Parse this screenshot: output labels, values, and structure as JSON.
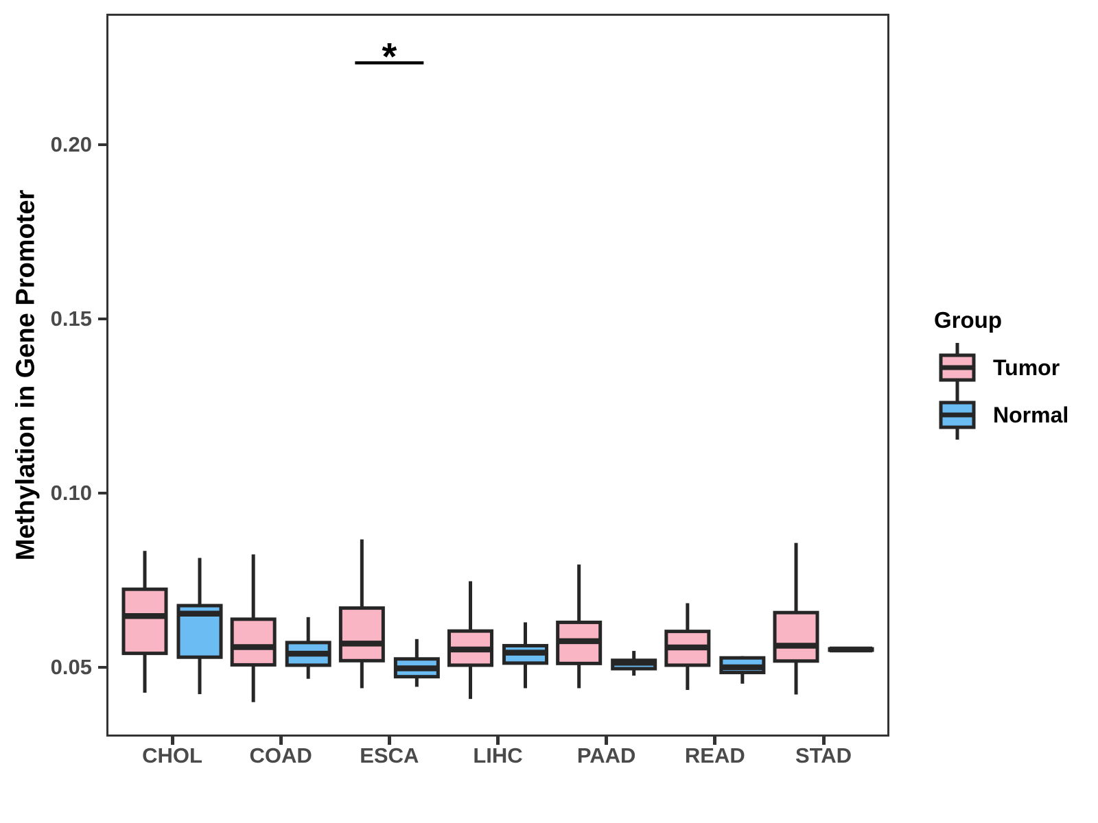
{
  "figure": {
    "legend": {
      "title": "Group",
      "items": [
        {
          "label": "Tumor",
          "color": "#F9B5C4"
        },
        {
          "label": "Normal",
          "color": "#6CBCF4"
        }
      ]
    }
  },
  "chart_data": {
    "type": "grouped_boxplot",
    "title": "",
    "xlabel": "",
    "ylabel": "Methylation in Gene Promoter",
    "categories": [
      "CHOL",
      "COAD",
      "ESCA",
      "LIHC",
      "PAAD",
      "READ",
      "STAD"
    ],
    "y_ticks": [
      0.05,
      0.1,
      0.15,
      0.2
    ],
    "ylim": [
      0.0307,
      0.237
    ],
    "grid": false,
    "legend_position": "right",
    "colors": {
      "stroke": "#262626",
      "axis_text": "#4A4A4A",
      "panel_border": "#333333"
    },
    "series": [
      {
        "name": "Tumor",
        "color": "#F9B5C4",
        "boxes": [
          {
            "whisker_low": 0.0427,
            "q1": 0.054,
            "median": 0.0647,
            "q3": 0.0724,
            "whisker_high": 0.0834
          },
          {
            "whisker_low": 0.04,
            "q1": 0.0507,
            "median": 0.0558,
            "q3": 0.0638,
            "whisker_high": 0.0824
          },
          {
            "whisker_low": 0.044,
            "q1": 0.0519,
            "median": 0.0568,
            "q3": 0.067,
            "whisker_high": 0.0867
          },
          {
            "whisker_low": 0.0409,
            "q1": 0.0506,
            "median": 0.0551,
            "q3": 0.0604,
            "whisker_high": 0.0747
          },
          {
            "whisker_low": 0.044,
            "q1": 0.0511,
            "median": 0.0575,
            "q3": 0.0629,
            "whisker_high": 0.0795
          },
          {
            "whisker_low": 0.0435,
            "q1": 0.0506,
            "median": 0.0557,
            "q3": 0.0603,
            "whisker_high": 0.0684
          },
          {
            "whisker_low": 0.0422,
            "q1": 0.0518,
            "median": 0.0562,
            "q3": 0.0657,
            "whisker_high": 0.0857
          }
        ]
      },
      {
        "name": "Normal",
        "color": "#6CBCF4",
        "boxes": [
          {
            "whisker_low": 0.0423,
            "q1": 0.0529,
            "median": 0.0654,
            "q3": 0.0677,
            "whisker_high": 0.0814
          },
          {
            "whisker_low": 0.0467,
            "q1": 0.0506,
            "median": 0.0539,
            "q3": 0.0571,
            "whisker_high": 0.0644
          },
          {
            "whisker_low": 0.0444,
            "q1": 0.0473,
            "median": 0.0497,
            "q3": 0.0524,
            "whisker_high": 0.0581
          },
          {
            "whisker_low": 0.044,
            "q1": 0.0512,
            "median": 0.0542,
            "q3": 0.0562,
            "whisker_high": 0.0629
          },
          {
            "whisker_low": 0.0476,
            "q1": 0.0496,
            "median": 0.0513,
            "q3": 0.052,
            "whisker_high": 0.0547
          },
          {
            "whisker_low": 0.0453,
            "q1": 0.0485,
            "median": 0.05,
            "q3": 0.0527,
            "whisker_high": 0.0532
          },
          {
            "whisker_low": 0.0548,
            "q1": 0.0549,
            "median": 0.0551,
            "q3": 0.0553,
            "whisker_high": 0.0554
          }
        ]
      }
    ],
    "significance": {
      "category": "ESCA",
      "label": "*",
      "bar_value": 0.2235
    }
  }
}
